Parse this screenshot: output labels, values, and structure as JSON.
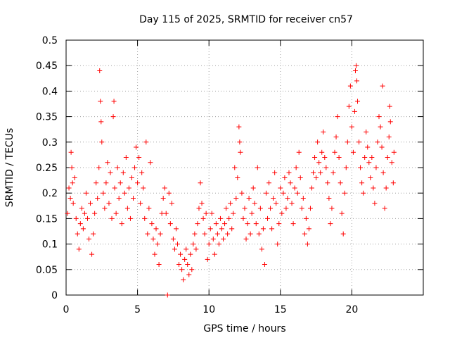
{
  "chart_data": {
    "type": "scatter",
    "title": "Day 115 of 2025, SRMTID for receiver cn57",
    "xlabel": "GPS time / hours",
    "ylabel": "SRMTID / TECUs",
    "xlim": [
      0,
      25
    ],
    "ylim": [
      0,
      0.5
    ],
    "x_ticks": [
      0,
      5,
      10,
      15,
      20
    ],
    "y_ticks": [
      0,
      0.05,
      0.1,
      0.15,
      0.2,
      0.25,
      0.3,
      0.35,
      0.4,
      0.45,
      0.5
    ],
    "x_tick_labels": [
      "0",
      "5",
      "10",
      "15",
      "20"
    ],
    "y_tick_labels": [
      "0",
      "0.05",
      "0.1",
      "0.15",
      "0.2",
      "0.25",
      "0.3",
      "0.35",
      "0.4",
      "0.45",
      "0.5"
    ],
    "grid": true,
    "marker": "+",
    "color": "#ff0000",
    "series": [
      {
        "name": "SRMTID",
        "points": [
          [
            0.1,
            0.16
          ],
          [
            0.2,
            0.21
          ],
          [
            0.3,
            0.19
          ],
          [
            0.35,
            0.28
          ],
          [
            0.4,
            0.25
          ],
          [
            0.45,
            0.22
          ],
          [
            0.5,
            0.18
          ],
          [
            0.6,
            0.23
          ],
          [
            0.7,
            0.15
          ],
          [
            0.8,
            0.12
          ],
          [
            0.9,
            0.09
          ],
          [
            1.0,
            0.14
          ],
          [
            1.1,
            0.17
          ],
          [
            1.2,
            0.13
          ],
          [
            1.3,
            0.16
          ],
          [
            1.4,
            0.2
          ],
          [
            1.5,
            0.15
          ],
          [
            1.6,
            0.11
          ],
          [
            1.7,
            0.18
          ],
          [
            1.8,
            0.08
          ],
          [
            1.9,
            0.12
          ],
          [
            2.0,
            0.16
          ],
          [
            2.1,
            0.22
          ],
          [
            2.2,
            0.19
          ],
          [
            2.3,
            0.25
          ],
          [
            2.35,
            0.44
          ],
          [
            2.4,
            0.38
          ],
          [
            2.45,
            0.34
          ],
          [
            2.5,
            0.3
          ],
          [
            2.6,
            0.2
          ],
          [
            2.7,
            0.17
          ],
          [
            2.8,
            0.22
          ],
          [
            2.9,
            0.26
          ],
          [
            3.0,
            0.18
          ],
          [
            3.1,
            0.24
          ],
          [
            3.2,
            0.15
          ],
          [
            3.3,
            0.35
          ],
          [
            3.35,
            0.38
          ],
          [
            3.4,
            0.21
          ],
          [
            3.5,
            0.16
          ],
          [
            3.6,
            0.25
          ],
          [
            3.7,
            0.19
          ],
          [
            3.8,
            0.22
          ],
          [
            3.9,
            0.14
          ],
          [
            4.0,
            0.24
          ],
          [
            4.1,
            0.2
          ],
          [
            4.2,
            0.27
          ],
          [
            4.3,
            0.17
          ],
          [
            4.4,
            0.21
          ],
          [
            4.5,
            0.15
          ],
          [
            4.6,
            0.23
          ],
          [
            4.7,
            0.19
          ],
          [
            4.8,
            0.25
          ],
          [
            4.9,
            0.29
          ],
          [
            5.0,
            0.22
          ],
          [
            5.1,
            0.27
          ],
          [
            5.2,
            0.18
          ],
          [
            5.3,
            0.24
          ],
          [
            5.4,
            0.21
          ],
          [
            5.5,
            0.15
          ],
          [
            5.6,
            0.3
          ],
          [
            5.7,
            0.12
          ],
          [
            5.8,
            0.17
          ],
          [
            5.9,
            0.26
          ],
          [
            6.0,
            0.14
          ],
          [
            6.1,
            0.11
          ],
          [
            6.2,
            0.08
          ],
          [
            6.3,
            0.13
          ],
          [
            6.4,
            0.1
          ],
          [
            6.5,
            0.06
          ],
          [
            6.6,
            0.12
          ],
          [
            6.7,
            0.16
          ],
          [
            6.8,
            0.19
          ],
          [
            6.9,
            0.21
          ],
          [
            7.0,
            0.16
          ],
          [
            7.1,
            0.0
          ],
          [
            7.2,
            0.2
          ],
          [
            7.3,
            0.14
          ],
          [
            7.4,
            0.18
          ],
          [
            7.5,
            0.11
          ],
          [
            7.6,
            0.09
          ],
          [
            7.7,
            0.13
          ],
          [
            7.8,
            0.1
          ],
          [
            7.9,
            0.06
          ],
          [
            8.0,
            0.08
          ],
          [
            8.1,
            0.05
          ],
          [
            8.2,
            0.03
          ],
          [
            8.3,
            0.07
          ],
          [
            8.4,
            0.09
          ],
          [
            8.5,
            0.06
          ],
          [
            8.6,
            0.04
          ],
          [
            8.7,
            0.08
          ],
          [
            8.8,
            0.05
          ],
          [
            8.9,
            0.1
          ],
          [
            9.0,
            0.12
          ],
          [
            9.1,
            0.09
          ],
          [
            9.2,
            0.14
          ],
          [
            9.3,
            0.17
          ],
          [
            9.4,
            0.22
          ],
          [
            9.5,
            0.18
          ],
          [
            9.6,
            0.15
          ],
          [
            9.7,
            0.12
          ],
          [
            9.8,
            0.16
          ],
          [
            9.9,
            0.07
          ],
          [
            10.0,
            0.1
          ],
          [
            10.1,
            0.13
          ],
          [
            10.2,
            0.16
          ],
          [
            10.3,
            0.11
          ],
          [
            10.4,
            0.08
          ],
          [
            10.5,
            0.14
          ],
          [
            10.6,
            0.12
          ],
          [
            10.7,
            0.1
          ],
          [
            10.8,
            0.15
          ],
          [
            10.9,
            0.13
          ],
          [
            11.0,
            0.11
          ],
          [
            11.1,
            0.14
          ],
          [
            11.2,
            0.17
          ],
          [
            11.3,
            0.12
          ],
          [
            11.4,
            0.15
          ],
          [
            11.5,
            0.18
          ],
          [
            11.6,
            0.13
          ],
          [
            11.7,
            0.16
          ],
          [
            11.8,
            0.25
          ],
          [
            11.9,
            0.19
          ],
          [
            12.0,
            0.23
          ],
          [
            12.1,
            0.33
          ],
          [
            12.15,
            0.3
          ],
          [
            12.2,
            0.28
          ],
          [
            12.3,
            0.2
          ],
          [
            12.4,
            0.15
          ],
          [
            12.5,
            0.17
          ],
          [
            12.6,
            0.11
          ],
          [
            12.7,
            0.14
          ],
          [
            12.8,
            0.19
          ],
          [
            12.9,
            0.12
          ],
          [
            13.0,
            0.16
          ],
          [
            13.1,
            0.21
          ],
          [
            13.2,
            0.18
          ],
          [
            13.3,
            0.14
          ],
          [
            13.4,
            0.25
          ],
          [
            13.5,
            0.12
          ],
          [
            13.6,
            0.17
          ],
          [
            13.7,
            0.09
          ],
          [
            13.8,
            0.13
          ],
          [
            13.9,
            0.06
          ],
          [
            14.0,
            0.2
          ],
          [
            14.1,
            0.15
          ],
          [
            14.2,
            0.22
          ],
          [
            14.3,
            0.17
          ],
          [
            14.4,
            0.13
          ],
          [
            14.5,
            0.19
          ],
          [
            14.6,
            0.24
          ],
          [
            14.7,
            0.18
          ],
          [
            14.8,
            0.1
          ],
          [
            14.9,
            0.14
          ],
          [
            15.0,
            0.21
          ],
          [
            15.1,
            0.16
          ],
          [
            15.2,
            0.2
          ],
          [
            15.3,
            0.23
          ],
          [
            15.4,
            0.17
          ],
          [
            15.5,
            0.19
          ],
          [
            15.6,
            0.24
          ],
          [
            15.7,
            0.22
          ],
          [
            15.8,
            0.18
          ],
          [
            15.9,
            0.14
          ],
          [
            16.0,
            0.21
          ],
          [
            16.1,
            0.25
          ],
          [
            16.2,
            0.2
          ],
          [
            16.3,
            0.28
          ],
          [
            16.4,
            0.23
          ],
          [
            16.5,
            0.17
          ],
          [
            16.6,
            0.19
          ],
          [
            16.7,
            0.12
          ],
          [
            16.8,
            0.15
          ],
          [
            16.9,
            0.1
          ],
          [
            17.0,
            0.13
          ],
          [
            17.1,
            0.17
          ],
          [
            17.2,
            0.21
          ],
          [
            17.3,
            0.24
          ],
          [
            17.4,
            0.27
          ],
          [
            17.5,
            0.23
          ],
          [
            17.6,
            0.3
          ],
          [
            17.7,
            0.26
          ],
          [
            17.8,
            0.24
          ],
          [
            17.9,
            0.28
          ],
          [
            18.0,
            0.32
          ],
          [
            18.1,
            0.27
          ],
          [
            18.2,
            0.25
          ],
          [
            18.3,
            0.22
          ],
          [
            18.4,
            0.19
          ],
          [
            18.5,
            0.14
          ],
          [
            18.6,
            0.17
          ],
          [
            18.7,
            0.24
          ],
          [
            18.8,
            0.28
          ],
          [
            18.9,
            0.31
          ],
          [
            19.0,
            0.35
          ],
          [
            19.1,
            0.27
          ],
          [
            19.2,
            0.22
          ],
          [
            19.3,
            0.16
          ],
          [
            19.4,
            0.12
          ],
          [
            19.5,
            0.2
          ],
          [
            19.6,
            0.25
          ],
          [
            19.7,
            0.3
          ],
          [
            19.8,
            0.37
          ],
          [
            19.9,
            0.41
          ],
          [
            20.0,
            0.33
          ],
          [
            20.1,
            0.28
          ],
          [
            20.2,
            0.36
          ],
          [
            20.25,
            0.44
          ],
          [
            20.3,
            0.45
          ],
          [
            20.35,
            0.42
          ],
          [
            20.4,
            0.38
          ],
          [
            20.5,
            0.3
          ],
          [
            20.6,
            0.25
          ],
          [
            20.7,
            0.22
          ],
          [
            20.8,
            0.2
          ],
          [
            20.9,
            0.27
          ],
          [
            21.0,
            0.32
          ],
          [
            21.1,
            0.29
          ],
          [
            21.2,
            0.26
          ],
          [
            21.3,
            0.23
          ],
          [
            21.4,
            0.27
          ],
          [
            21.5,
            0.21
          ],
          [
            21.6,
            0.18
          ],
          [
            21.7,
            0.25
          ],
          [
            21.8,
            0.3
          ],
          [
            21.9,
            0.35
          ],
          [
            22.0,
            0.33
          ],
          [
            22.1,
            0.29
          ],
          [
            22.15,
            0.41
          ],
          [
            22.2,
            0.24
          ],
          [
            22.3,
            0.17
          ],
          [
            22.4,
            0.21
          ],
          [
            22.5,
            0.27
          ],
          [
            22.6,
            0.31
          ],
          [
            22.65,
            0.37
          ],
          [
            22.7,
            0.34
          ],
          [
            22.8,
            0.26
          ],
          [
            22.9,
            0.22
          ],
          [
            22.95,
            0.28
          ]
        ]
      }
    ]
  }
}
